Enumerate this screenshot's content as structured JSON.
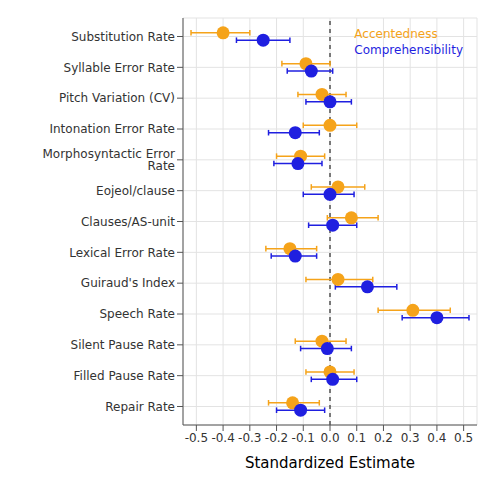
{
  "chart_data": {
    "type": "scatter",
    "orientation": "horizontal",
    "x_label": "Standardized Estimate",
    "categories": [
      "Substitution Rate",
      "Syllable Error Rate",
      "Pitch Variation (CV)",
      "Intonation Error Rate",
      "Morphosyntactic Error Rate",
      "Eojeol/clause",
      "Clauses/AS-unit",
      "Lexical Error Rate",
      "Guiraud's Index",
      "Speech Rate",
      "Silent Pause Rate",
      "Filled Pause Rate",
      "Repair Rate"
    ],
    "series": [
      {
        "name": "Accentedness",
        "color": "#f5a31a",
        "values": [
          -0.4,
          -0.09,
          -0.03,
          0.0,
          -0.11,
          0.03,
          0.08,
          -0.15,
          0.03,
          0.31,
          -0.03,
          0.0,
          -0.14
        ],
        "error_low": [
          -0.52,
          -0.18,
          -0.12,
          -0.1,
          -0.2,
          -0.07,
          -0.01,
          -0.24,
          -0.09,
          0.18,
          -0.13,
          -0.09,
          -0.23
        ],
        "error_high": [
          -0.3,
          0.0,
          0.06,
          0.1,
          -0.02,
          0.13,
          0.18,
          -0.05,
          0.16,
          0.45,
          0.06,
          0.09,
          -0.04
        ]
      },
      {
        "name": "Comprehensibility",
        "color": "#1f1fe0",
        "values": [
          -0.25,
          -0.07,
          0.0,
          -0.13,
          -0.12,
          0.0,
          0.01,
          -0.13,
          0.14,
          0.4,
          -0.01,
          0.01,
          -0.11
        ],
        "error_low": [
          -0.35,
          -0.16,
          -0.09,
          -0.23,
          -0.21,
          -0.1,
          -0.08,
          -0.22,
          0.02,
          0.27,
          -0.11,
          -0.07,
          -0.2
        ],
        "error_high": [
          -0.15,
          0.01,
          0.08,
          -0.04,
          -0.03,
          0.09,
          0.1,
          -0.05,
          0.25,
          0.52,
          0.08,
          0.1,
          -0.02
        ]
      }
    ],
    "xlim": [
      -0.55,
      0.55
    ],
    "xticks": [
      -0.5,
      -0.4,
      -0.3,
      -0.2,
      -0.1,
      {
        "value": 0,
        "label": "0.0"
      },
      0.1,
      0.2,
      0.3,
      0.4,
      0.5
    ],
    "reference_line": 0,
    "grid": true,
    "legend": "upper right",
    "marker": "circle"
  }
}
